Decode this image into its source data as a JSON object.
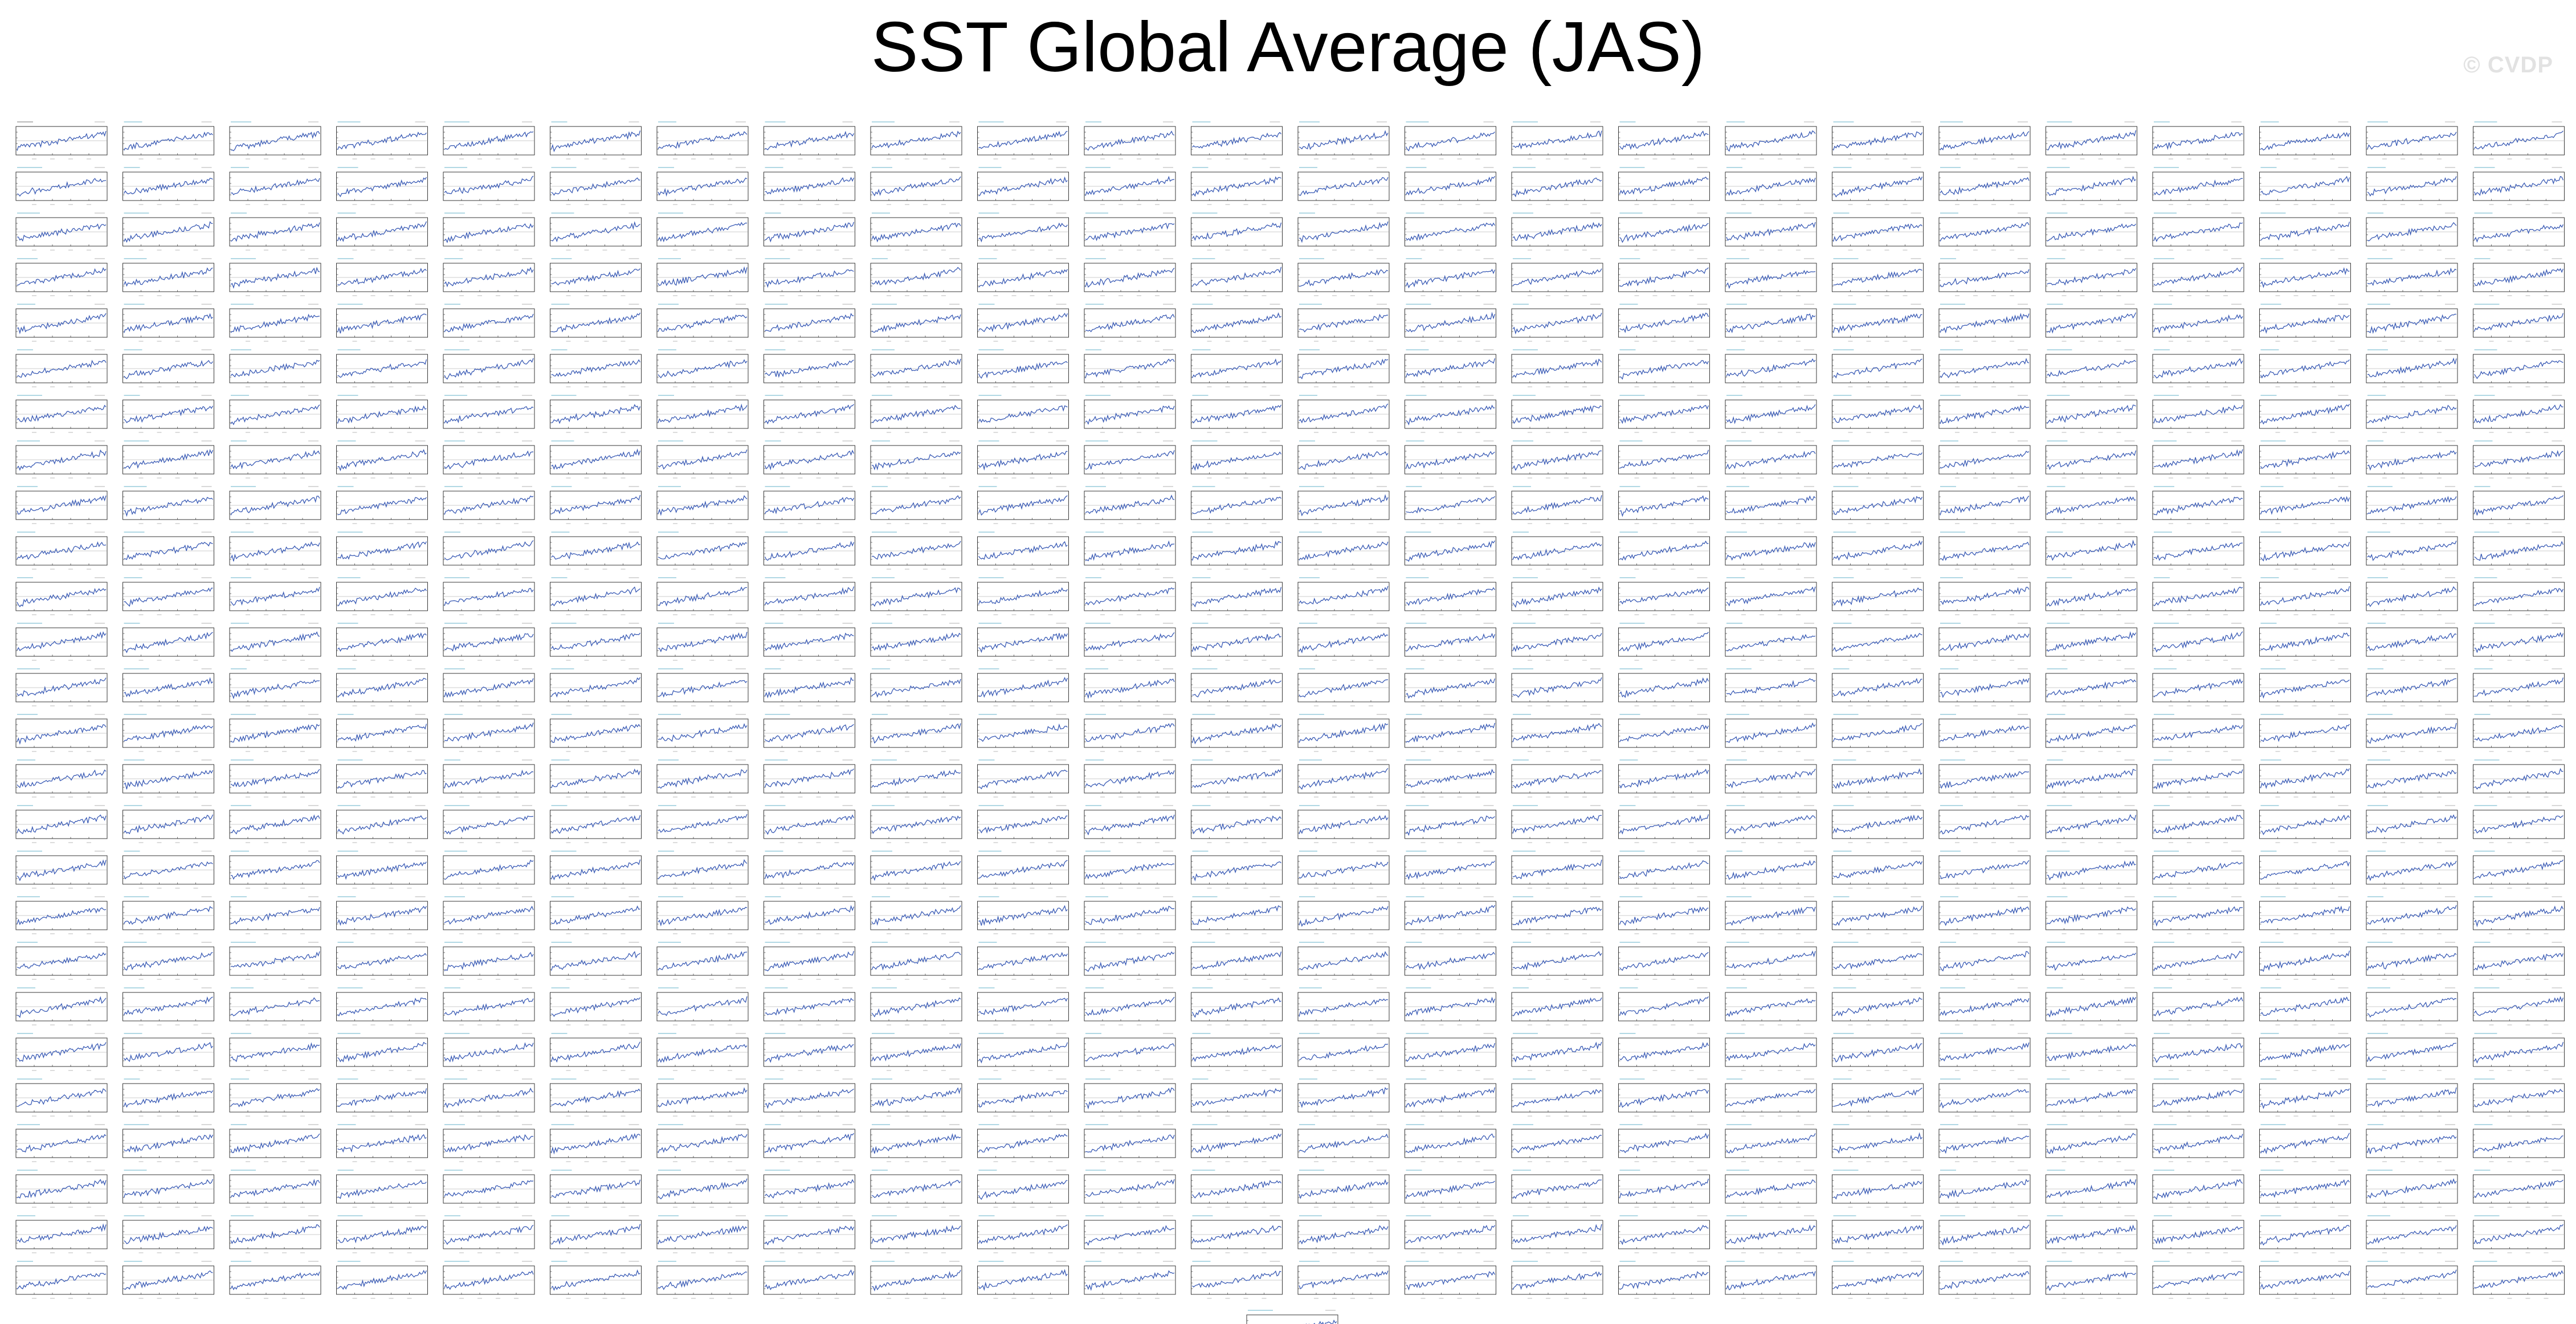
{
  "title": "SST Global Average (JAS)",
  "watermark": "© CVDP",
  "colors": {
    "line": "#3a5bb5",
    "axes": "#222222",
    "title_text": "#1f8fb0",
    "tick": "#555555"
  },
  "chart_data": {
    "type": "line",
    "layout": "small multiples",
    "rows": 26,
    "columns": 24,
    "panel_count": 625,
    "extra_panel_row": "centered single panel below grid",
    "panels_share_form": true,
    "series_trend": "increasing with interannual variability",
    "panel_titles": "too small to read",
    "tick_labels": "too small to read",
    "x": [
      1,
      2,
      3,
      4,
      5,
      6,
      7,
      8,
      9,
      10,
      11,
      12,
      13,
      14,
      15,
      16,
      17,
      18,
      19,
      20,
      21,
      22,
      23,
      24,
      25,
      26,
      27,
      28,
      29,
      30,
      31,
      32,
      33,
      34,
      35,
      36,
      37,
      38,
      39,
      40,
      41,
      42,
      43,
      44,
      45,
      46,
      47,
      48,
      49,
      50,
      51,
      52,
      53,
      54,
      55,
      56,
      57,
      58,
      59,
      60,
      61,
      62,
      63,
      64,
      65
    ],
    "values_illustrative": [
      -0.42,
      -0.38,
      -0.45,
      -0.35,
      -0.4,
      -0.3,
      -0.36,
      -0.28,
      -0.33,
      -0.25,
      -0.31,
      -0.22,
      -0.27,
      -0.3,
      -0.2,
      -0.24,
      -0.18,
      -0.22,
      -0.15,
      -0.21,
      -0.12,
      -0.17,
      -0.1,
      -0.14,
      -0.08,
      -0.13,
      -0.05,
      -0.09,
      -0.02,
      -0.07,
      0.0,
      -0.04,
      0.03,
      -0.01,
      0.05,
      0.01,
      0.08,
      0.03,
      0.1,
      0.06,
      0.12,
      0.08,
      0.15,
      0.1,
      0.17,
      0.13,
      0.2,
      0.15,
      0.22,
      0.18,
      0.25,
      0.2,
      0.28,
      0.23,
      0.3,
      0.26,
      0.33,
      0.29,
      0.36,
      0.31,
      0.39,
      0.34,
      0.42,
      0.38,
      0.45
    ]
  }
}
